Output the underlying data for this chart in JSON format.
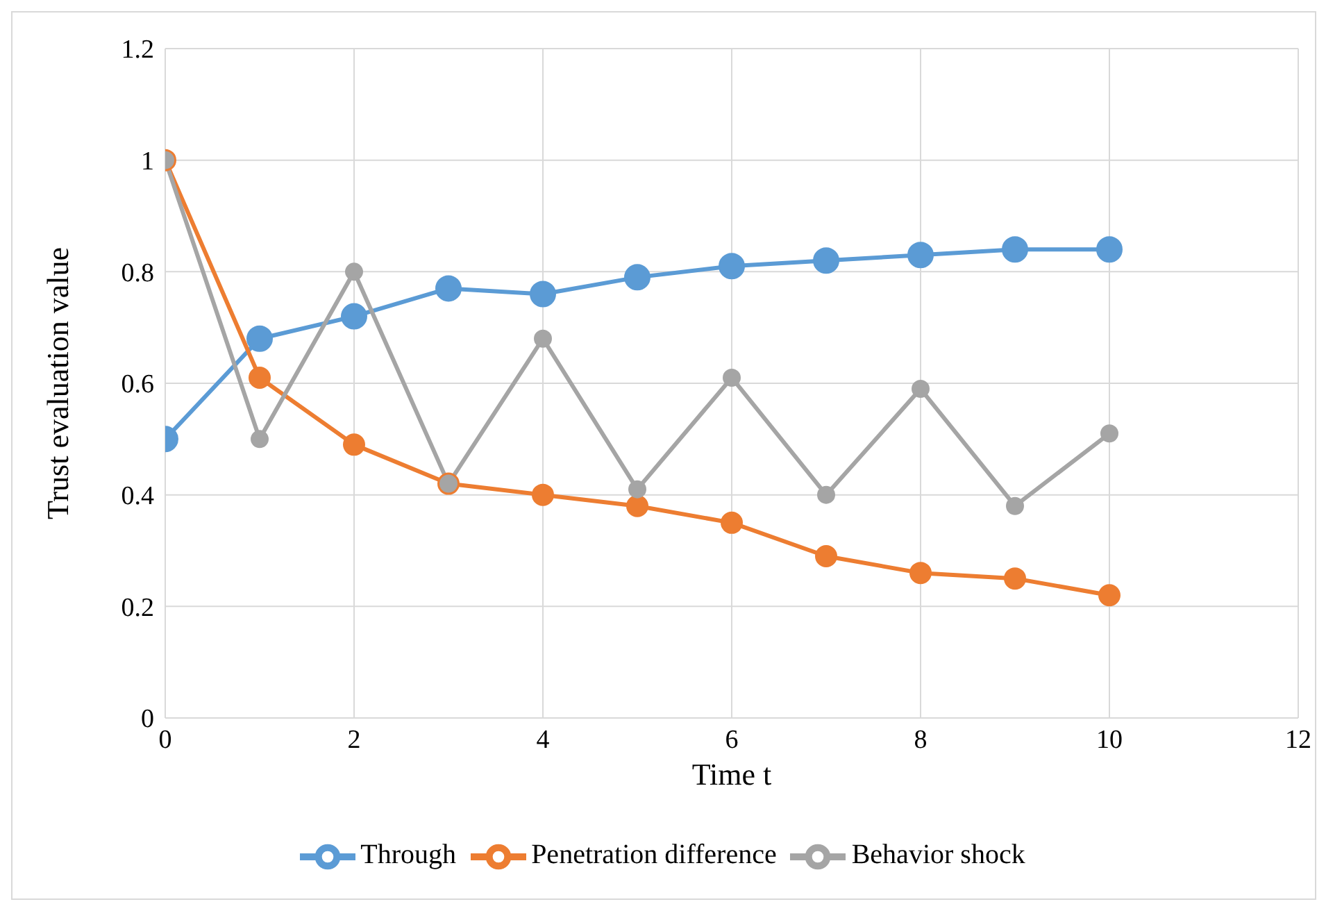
{
  "chart_data": {
    "type": "line",
    "xlabel": "Time t",
    "ylabel": "Trust evaluation value",
    "x": [
      0,
      1,
      2,
      3,
      4,
      5,
      6,
      7,
      8,
      9,
      10
    ],
    "series": [
      {
        "name": "Through",
        "color": "#5b9bd5",
        "values": [
          0.5,
          0.68,
          0.72,
          0.77,
          0.76,
          0.79,
          0.81,
          0.82,
          0.83,
          0.84,
          0.84
        ]
      },
      {
        "name": "Penetration difference",
        "color": "#ed7d31",
        "values": [
          1,
          0.61,
          0.49,
          0.42,
          0.4,
          0.38,
          0.35,
          0.29,
          0.26,
          0.25,
          0.22
        ]
      },
      {
        "name": "Behavior shock",
        "color": "#a5a5a5",
        "values": [
          1,
          0.5,
          0.8,
          0.42,
          0.68,
          0.41,
          0.61,
          0.4,
          0.59,
          0.38,
          0.51
        ]
      }
    ],
    "xlim": [
      0,
      12
    ],
    "xticks": [
      0,
      2,
      4,
      6,
      8,
      10,
      12
    ],
    "ylim": [
      0,
      1.2
    ],
    "yticks": [
      0,
      0.2,
      0.4,
      0.6,
      0.8,
      1,
      1.2
    ],
    "grid": true,
    "legend": "bottom",
    "marker": "circle",
    "line_style": "solid"
  }
}
